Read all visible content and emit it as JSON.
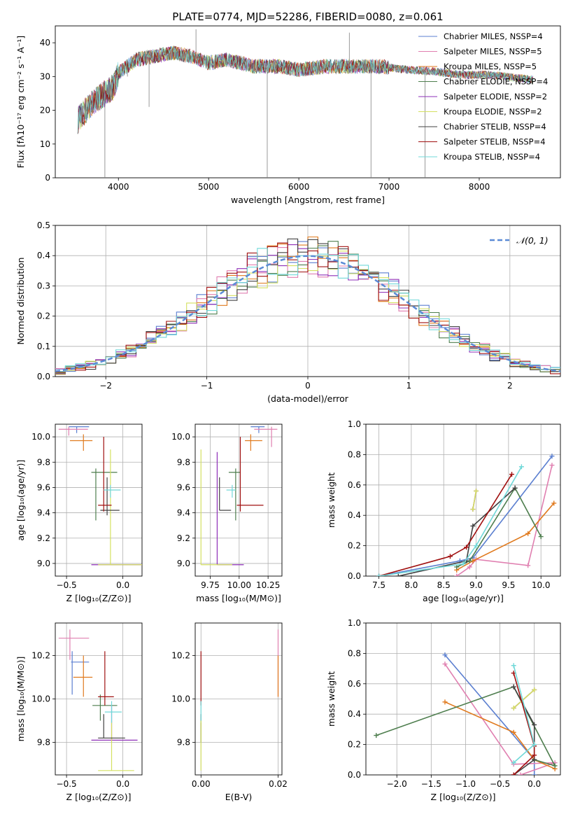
{
  "title": "PLATE=0774, MJD=52286, FIBERID=0080, z=0.061",
  "colors": {
    "Chabrier MILES": "#5b7fd0",
    "Salpeter MILES": "#e07fb0",
    "Kroupa MILES": "#e07a1e",
    "Chabrier ELODIE": "#4e7e4e",
    "Salpeter ELODIE": "#8e2fb8",
    "Kroupa ELODIE": "#d4e060",
    "Chabrier STELIB": "#404040",
    "Salpeter STELIB": "#a01010",
    "Kroupa STELIB": "#70d8d8",
    "normal": "#5b8bd6"
  },
  "chart_data": [
    {
      "type": "line",
      "id": "spectrum",
      "xlabel": "wavelength [Angstrom, rest frame]",
      "ylabel": "Flux [fλ10⁻¹⁷ erg cm⁻² s⁻¹ A⁻¹]",
      "xlim": [
        3300,
        8900
      ],
      "ylim": [
        0,
        45
      ],
      "xticks": [
        "4000",
        "5000",
        "6000",
        "7000",
        "8000"
      ],
      "yticks": [
        "0",
        "10",
        "20",
        "30",
        "40"
      ],
      "legend_position": "top-right",
      "legend": [
        "Chabrier MILES, NSSP=4",
        "Salpeter MILES, NSSP=5",
        "Kroupa MILES, NSSP=5",
        "Chabrier ELODIE, NSSP=4",
        "Salpeter ELODIE, NSSP=2",
        "Kroupa ELODIE, NSSP=2",
        "Chabrier STELIB, NSSP=4",
        "Salpeter STELIB, NSSP=4",
        "Kroupa STELIB, NSSP=4"
      ],
      "continuum": [
        [
          3550,
          17
        ],
        [
          3700,
          22
        ],
        [
          3850,
          25
        ],
        [
          3950,
          27
        ],
        [
          4000,
          31
        ],
        [
          4200,
          35
        ],
        [
          4400,
          36
        ],
        [
          4600,
          37
        ],
        [
          4800,
          36
        ],
        [
          5000,
          34
        ],
        [
          5200,
          35
        ],
        [
          5500,
          33
        ],
        [
          5800,
          33
        ],
        [
          6000,
          32
        ],
        [
          6300,
          33
        ],
        [
          6600,
          33
        ],
        [
          6900,
          33
        ],
        [
          7200,
          32
        ],
        [
          7500,
          31.5
        ],
        [
          7800,
          30.5
        ],
        [
          8100,
          30.5
        ],
        [
          8300,
          30
        ],
        [
          8600,
          29
        ]
      ],
      "spikes": [
        [
          3850,
          0
        ],
        [
          4100,
          30
        ],
        [
          4340,
          21
        ],
        [
          4860,
          44
        ],
        [
          5650,
          0
        ],
        [
          6560,
          43
        ],
        [
          6800,
          0
        ],
        [
          7400,
          0
        ]
      ]
    },
    {
      "type": "histogram",
      "id": "residuals",
      "xlabel": "(data-model)/error",
      "ylabel": "Normed distribution",
      "xlim": [
        -2.5,
        2.5
      ],
      "ylim": [
        0,
        0.5
      ],
      "xticks": [
        "−2",
        "−1",
        "0",
        "1",
        "2"
      ],
      "yticks": [
        "0.0",
        "0.1",
        "0.2",
        "0.3",
        "0.4",
        "0.5"
      ],
      "legend_position": "top-right",
      "legend": [
        "𝒩(0, 1)"
      ],
      "bin_width": 0.1
    },
    {
      "type": "errorbar",
      "id": "age_vs_Z",
      "xlabel": "Z [log₁₀(Z/Z⊙)]",
      "ylabel": "age  [log₁₀(age/yr)]",
      "xlim": [
        -0.6,
        0.17
      ],
      "ylim": [
        8.9,
        10.1
      ],
      "xticks": [
        "−0.5",
        "0.0"
      ],
      "yticks": [
        "9.0",
        "9.2",
        "9.4",
        "9.6",
        "9.8",
        "10.0"
      ],
      "points": [
        {
          "s": "Chabrier MILES",
          "x": -0.41,
          "y": 10.08,
          "xl": -0.48,
          "xh": -0.3,
          "yl": 10.03,
          "yh": 10.08
        },
        {
          "s": "Salpeter MILES",
          "x": -0.48,
          "y": 10.06,
          "xl": -0.57,
          "xh": -0.31,
          "yl": 10.01,
          "yh": 10.08
        },
        {
          "s": "Kroupa MILES",
          "x": -0.35,
          "y": 9.97,
          "xl": -0.47,
          "xh": -0.27,
          "yl": 9.89,
          "yh": 10.02
        },
        {
          "s": "Chabrier ELODIE",
          "x": -0.24,
          "y": 9.72,
          "xl": -0.28,
          "xh": -0.05,
          "yl": 9.34,
          "yh": 9.75
        },
        {
          "s": "Salpeter ELODIE",
          "x": -0.23,
          "y": 8.99,
          "xl": -0.28,
          "xh": 0.17,
          "yl": 8.99,
          "yh": 8.99
        },
        {
          "s": "Kroupa ELODIE",
          "x": -0.11,
          "y": 8.99,
          "xl": -0.22,
          "xh": 0.17,
          "yl": 8.99,
          "yh": 9.9
        },
        {
          "s": "Chabrier STELIB",
          "x": -0.14,
          "y": 9.42,
          "xl": -0.2,
          "xh": -0.03,
          "yl": 9.38,
          "yh": 9.68
        },
        {
          "s": "Salpeter STELIB",
          "x": -0.17,
          "y": 9.46,
          "xl": -0.22,
          "xh": -0.1,
          "yl": 9.41,
          "yh": 10.0
        },
        {
          "s": "Kroupa STELIB",
          "x": -0.11,
          "y": 9.58,
          "xl": -0.17,
          "xh": -0.02,
          "yl": 9.52,
          "yh": 9.62
        }
      ]
    },
    {
      "type": "errorbar",
      "id": "age_vs_mass",
      "xlabel": "mass [log₁₀(M/M⊙)]",
      "ylabel": "",
      "xlim": [
        9.62,
        10.37
      ],
      "ylim": [
        8.9,
        10.1
      ],
      "xticks": [
        "9.75",
        "10.00",
        "10.25"
      ],
      "yticks": [
        "9.0",
        "9.2",
        "9.4",
        "9.6",
        "9.8",
        "10.0"
      ],
      "points": [
        {
          "s": "Chabrier MILES",
          "x": 10.17,
          "y": 10.08,
          "xl": 10.1,
          "xh": 10.22,
          "yl": 10.03,
          "yh": 10.08
        },
        {
          "s": "Salpeter MILES",
          "x": 10.28,
          "y": 10.06,
          "xl": 10.13,
          "xh": 10.33,
          "yl": 9.92,
          "yh": 10.08
        },
        {
          "s": "Kroupa MILES",
          "x": 10.1,
          "y": 9.97,
          "xl": 10.05,
          "xh": 10.2,
          "yl": 9.89,
          "yh": 10.02
        },
        {
          "s": "Chabrier ELODIE",
          "x": 9.97,
          "y": 9.72,
          "xl": 9.91,
          "xh": 10.01,
          "yl": 9.34,
          "yh": 9.75
        },
        {
          "s": "Salpeter ELODIE",
          "x": 9.81,
          "y": 8.99,
          "xl": 9.81,
          "xh": 10.04,
          "yl": 8.99,
          "yh": 9.88
        },
        {
          "s": "Kroupa ELODIE",
          "x": 9.67,
          "y": 8.99,
          "xl": 9.67,
          "xh": 9.94,
          "yl": 8.99,
          "yh": 9.9
        },
        {
          "s": "Chabrier STELIB",
          "x": 9.83,
          "y": 9.42,
          "xl": 9.83,
          "xh": 9.93,
          "yl": 9.42,
          "yh": 9.68
        },
        {
          "s": "Salpeter STELIB",
          "x": 10.01,
          "y": 9.46,
          "xl": 9.98,
          "xh": 10.21,
          "yl": 9.41,
          "yh": 10.0
        },
        {
          "s": "Kroupa STELIB",
          "x": 9.94,
          "y": 9.58,
          "xl": 9.89,
          "xh": 9.97,
          "yl": 9.52,
          "yh": 9.62
        }
      ]
    },
    {
      "type": "line",
      "id": "mass_weight_vs_age",
      "xlabel": "age  [log₁₀(age/yr)]",
      "ylabel": "mass weight",
      "xlim": [
        7.3,
        10.3
      ],
      "ylim": [
        0,
        1.0
      ],
      "xticks": [
        "7.5",
        "8.0",
        "8.5",
        "9.0",
        "9.5",
        "10.0"
      ],
      "yticks": [
        "0.0",
        "0.2",
        "0.4",
        "0.6",
        "0.8",
        "1.0"
      ],
      "series": [
        {
          "s": "Chabrier MILES",
          "x": [
            7.5,
            8.75,
            8.95,
            10.17
          ],
          "y": [
            0.0,
            0.1,
            0.12,
            0.79
          ]
        },
        {
          "s": "Salpeter MILES",
          "x": [
            8.7,
            8.9,
            9.0,
            9.8,
            10.17
          ],
          "y": [
            0.0,
            0.06,
            0.11,
            0.07,
            0.73
          ]
        },
        {
          "s": "Kroupa MILES",
          "x": [
            8.7,
            8.95,
            9.8,
            10.2
          ],
          "y": [
            0.04,
            0.1,
            0.28,
            0.48
          ]
        },
        {
          "s": "Chabrier ELODIE",
          "x": [
            8.7,
            8.9,
            9.6,
            10.0
          ],
          "y": [
            0.06,
            0.1,
            0.58,
            0.26
          ]
        },
        {
          "s": "Salpeter ELODIE",
          "x": [
            8.95,
            9.0
          ],
          "y": [
            0.44,
            0.56
          ]
        },
        {
          "s": "Kroupa ELODIE",
          "x": [
            8.95,
            9.0
          ],
          "y": [
            0.44,
            0.56
          ]
        },
        {
          "s": "Chabrier STELIB",
          "x": [
            7.8,
            8.85,
            8.95,
            9.6
          ],
          "y": [
            0.0,
            0.1,
            0.33,
            0.58
          ]
        },
        {
          "s": "Salpeter STELIB",
          "x": [
            7.5,
            8.6,
            8.85,
            9.55
          ],
          "y": [
            0.0,
            0.13,
            0.19,
            0.67
          ]
        },
        {
          "s": "Kroupa STELIB",
          "x": [
            7.5,
            8.8,
            9.0,
            9.7
          ],
          "y": [
            0.0,
            0.08,
            0.2,
            0.72
          ]
        }
      ]
    },
    {
      "type": "errorbar",
      "id": "mass_vs_Z",
      "xlabel": "Z [log₁₀(Z/Z⊙)]",
      "ylabel": "mass [log₁₀(M/M⊙)]",
      "xlim": [
        -0.6,
        0.17
      ],
      "ylim": [
        9.65,
        10.35
      ],
      "xticks": [
        "−0.5",
        "0.0"
      ],
      "yticks": [
        "9.8",
        "10.0",
        "10.2"
      ],
      "points": [
        {
          "s": "Chabrier MILES",
          "x": -0.45,
          "y": 10.17,
          "xl": -0.46,
          "xh": -0.3,
          "yl": 10.02,
          "yh": 10.22
        },
        {
          "s": "Salpeter MILES",
          "x": -0.47,
          "y": 10.28,
          "xl": -0.57,
          "xh": -0.3,
          "yl": 10.18,
          "yh": 10.32
        },
        {
          "s": "Kroupa MILES",
          "x": -0.35,
          "y": 10.1,
          "xl": -0.44,
          "xh": -0.27,
          "yl": 10.01,
          "yh": 10.2
        },
        {
          "s": "Chabrier ELODIE",
          "x": -0.2,
          "y": 9.97,
          "xl": -0.27,
          "xh": -0.05,
          "yl": 9.9,
          "yh": 10.02
        },
        {
          "s": "Salpeter ELODIE",
          "x": -0.1,
          "y": 9.81,
          "xl": -0.28,
          "xh": 0.13,
          "yl": 9.81,
          "yh": 9.97
        },
        {
          "s": "Kroupa ELODIE",
          "x": -0.1,
          "y": 9.67,
          "xl": -0.22,
          "xh": 0.1,
          "yl": 9.67,
          "yh": 9.9
        },
        {
          "s": "Chabrier STELIB",
          "x": -0.17,
          "y": 9.82,
          "xl": -0.22,
          "xh": 0.02,
          "yl": 9.82,
          "yh": 9.93
        },
        {
          "s": "Salpeter STELIB",
          "x": -0.16,
          "y": 10.01,
          "xl": -0.22,
          "xh": -0.08,
          "yl": 9.97,
          "yh": 10.22
        },
        {
          "s": "Kroupa STELIB",
          "x": -0.1,
          "y": 9.94,
          "xl": -0.16,
          "xh": -0.01,
          "yl": 9.89,
          "yh": 9.99
        }
      ]
    },
    {
      "type": "errorbar",
      "id": "mass_vs_ebv",
      "xlabel": "E(B-V)",
      "ylabel": "",
      "xlim": [
        -0.0015,
        0.021
      ],
      "ylim": [
        9.65,
        10.35
      ],
      "xticks": [
        "0.00",
        "0.02"
      ],
      "yticks": [
        "9.8",
        "10.0",
        "10.2"
      ],
      "points": [
        {
          "s": "Salpeter MILES",
          "x": 0.02,
          "y": 10.2,
          "xl": 0.02,
          "xh": 0.02,
          "yl": 10.01,
          "yh": 10.32
        },
        {
          "s": "Kroupa MILES",
          "x": 0.02,
          "y": 10.1,
          "xl": 0.02,
          "xh": 0.02,
          "yl": 10.01,
          "yh": 10.2
        },
        {
          "s": "Salpeter STELIB",
          "x": 0.0,
          "y": 10.0,
          "xl": 0.0,
          "xh": 0.0,
          "yl": 9.97,
          "yh": 10.22
        },
        {
          "s": "Chabrier STELIB",
          "x": 0.0,
          "y": 9.85,
          "xl": 0.0,
          "xh": 0.0,
          "yl": 9.8,
          "yh": 9.93
        },
        {
          "s": "Kroupa STELIB",
          "x": 0.0,
          "y": 9.94,
          "xl": 0.0,
          "xh": 0.0,
          "yl": 9.89,
          "yh": 9.99
        },
        {
          "s": "Kroupa ELODIE",
          "x": 0.0,
          "y": 9.67,
          "xl": 0.0,
          "xh": 0.0,
          "yl": 9.67,
          "yh": 9.9
        }
      ]
    },
    {
      "type": "line",
      "id": "mass_weight_vs_Z",
      "xlabel": "Z [log₁₀(Z/Z⊙)]",
      "ylabel": "mass weight",
      "xlim": [
        -2.45,
        0.38
      ],
      "ylim": [
        0,
        1.0
      ],
      "xticks": [
        "−2.0",
        "−1.5",
        "−1.0",
        "−0.5",
        "0.0"
      ],
      "yticks": [
        "0.0",
        "0.2",
        "0.4",
        "0.6",
        "0.8",
        "1.0"
      ],
      "series": [
        {
          "s": "Chabrier MILES",
          "x": [
            -1.3,
            0.0,
            0.0
          ],
          "y": [
            0.79,
            0.1,
            0.0
          ]
        },
        {
          "s": "Salpeter MILES",
          "x": [
            -1.3,
            -0.3,
            0.3,
            -0.2
          ],
          "y": [
            0.73,
            0.07,
            0.08,
            0.0
          ]
        },
        {
          "s": "Kroupa MILES",
          "x": [
            -1.3,
            -0.3,
            0.0,
            0.3
          ],
          "y": [
            0.48,
            0.28,
            0.1,
            0.04
          ]
        },
        {
          "s": "Chabrier ELODIE",
          "x": [
            -2.3,
            -0.3,
            0.3,
            0.0
          ],
          "y": [
            0.26,
            0.58,
            0.06,
            0.1
          ]
        },
        {
          "s": "Salpeter ELODIE",
          "x": [
            -0.3,
            0.0
          ],
          "y": [
            0.44,
            0.56
          ]
        },
        {
          "s": "Kroupa ELODIE",
          "x": [
            -0.3,
            0.0
          ],
          "y": [
            0.44,
            0.56
          ]
        },
        {
          "s": "Chabrier STELIB",
          "x": [
            -0.3,
            0.0,
            0.0,
            -0.3
          ],
          "y": [
            0.58,
            0.33,
            0.1,
            0.0
          ]
        },
        {
          "s": "Salpeter STELIB",
          "x": [
            -0.3,
            0.0,
            0.0,
            -0.3
          ],
          "y": [
            0.67,
            0.19,
            0.13,
            0.0
          ]
        },
        {
          "s": "Kroupa STELIB",
          "x": [
            -0.3,
            0.0,
            -0.3
          ],
          "y": [
            0.72,
            0.2,
            0.08
          ]
        }
      ]
    }
  ]
}
